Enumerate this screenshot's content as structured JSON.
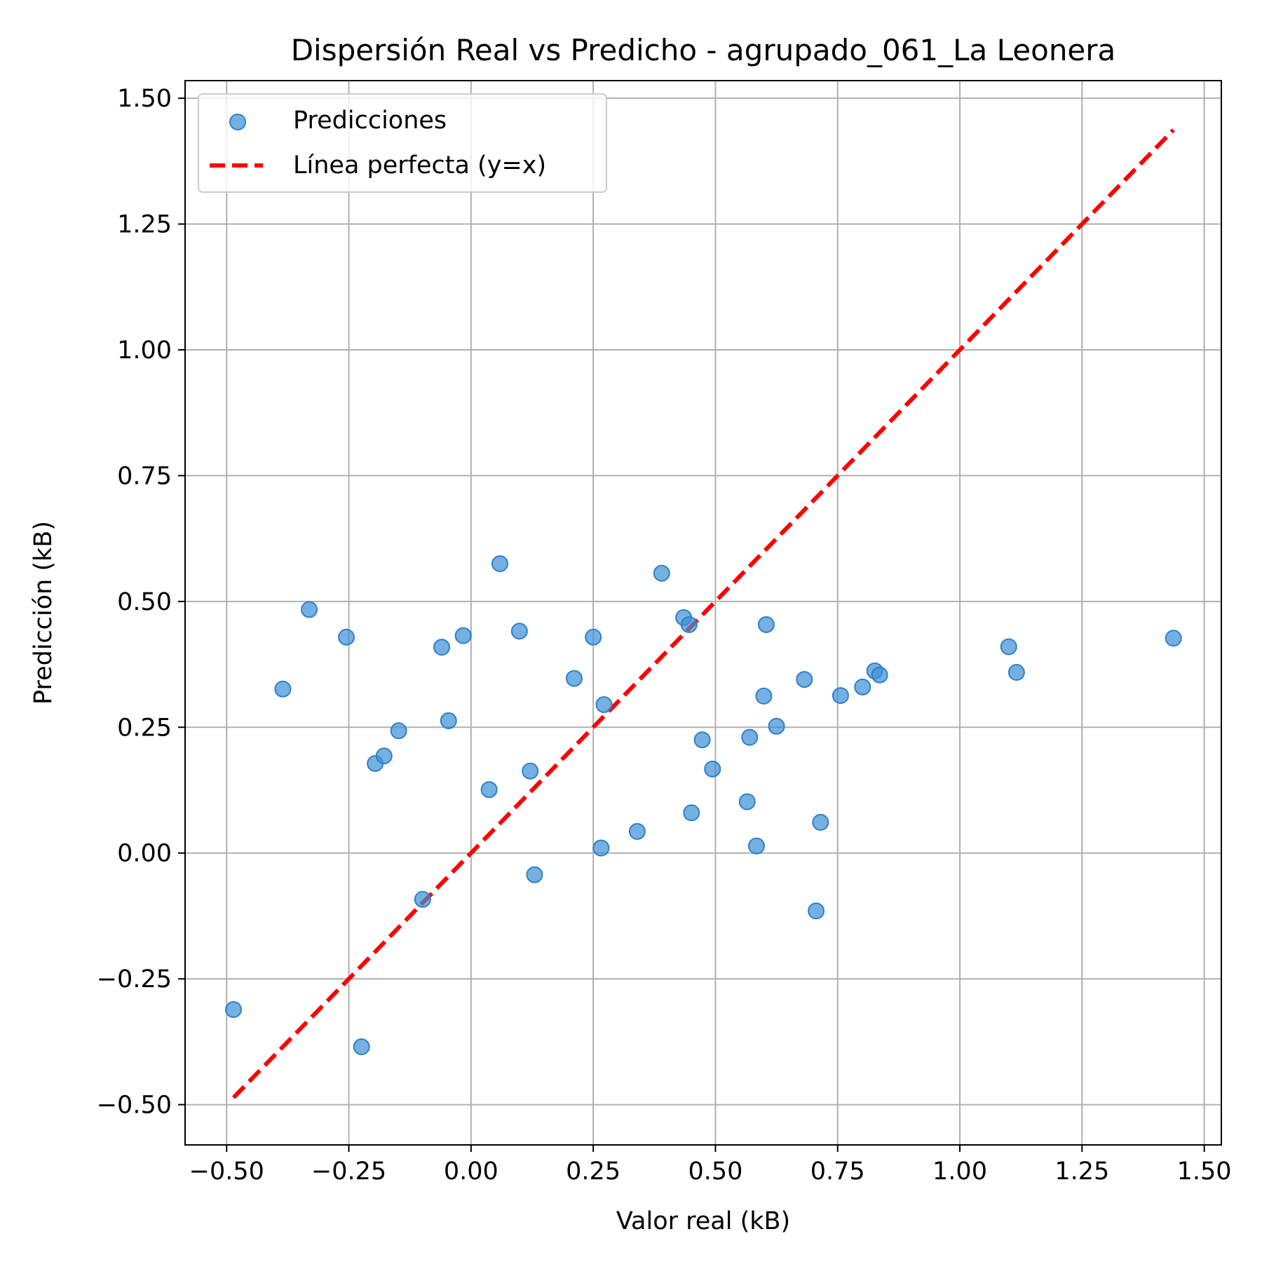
{
  "chart_data": {
    "type": "scatter",
    "title": "Dispersión Real vs Predicho - agrupado_061_La Leonera",
    "xlabel": "Valor real (kB)",
    "ylabel": "Predicción (kB)",
    "xlim": [
      -0.585,
      1.535
    ],
    "ylim": [
      -0.58,
      1.535
    ],
    "xticks": [
      -0.5,
      -0.25,
      0.0,
      0.25,
      0.5,
      0.75,
      1.0,
      1.25,
      1.5
    ],
    "yticks": [
      -0.5,
      -0.25,
      0.0,
      0.25,
      0.5,
      0.75,
      1.0,
      1.25,
      1.5
    ],
    "xtick_labels": [
      "−0.50",
      "−0.25",
      "0.00",
      "0.25",
      "0.50",
      "0.75",
      "1.00",
      "1.25",
      "1.50"
    ],
    "ytick_labels": [
      "−0.50",
      "−0.25",
      "0.00",
      "0.25",
      "0.50",
      "0.75",
      "1.00",
      "1.25",
      "1.50"
    ],
    "grid": true,
    "legend_position": "top-left",
    "series": [
      {
        "name": "Predicciones",
        "kind": "scatter",
        "color": "#3a8fd6",
        "points": [
          [
            -0.486,
            -0.311
          ],
          [
            -0.385,
            0.326
          ],
          [
            -0.331,
            0.484
          ],
          [
            -0.255,
            0.429
          ],
          [
            -0.224,
            -0.385
          ],
          [
            -0.196,
            0.178
          ],
          [
            -0.178,
            0.193
          ],
          [
            -0.148,
            0.243
          ],
          [
            -0.099,
            -0.092
          ],
          [
            -0.06,
            0.409
          ],
          [
            -0.046,
            0.263
          ],
          [
            -0.016,
            0.432
          ],
          [
            0.037,
            0.126
          ],
          [
            0.059,
            0.575
          ],
          [
            0.099,
            0.441
          ],
          [
            0.121,
            0.163
          ],
          [
            0.13,
            -0.043
          ],
          [
            0.211,
            0.347
          ],
          [
            0.25,
            0.429
          ],
          [
            0.266,
            0.01
          ],
          [
            0.272,
            0.295
          ],
          [
            0.34,
            0.043
          ],
          [
            0.39,
            0.556
          ],
          [
            0.435,
            0.468
          ],
          [
            0.446,
            0.454
          ],
          [
            0.451,
            0.08
          ],
          [
            0.473,
            0.225
          ],
          [
            0.494,
            0.167
          ],
          [
            0.565,
            0.102
          ],
          [
            0.57,
            0.23
          ],
          [
            0.584,
            0.014
          ],
          [
            0.599,
            0.312
          ],
          [
            0.604,
            0.454
          ],
          [
            0.625,
            0.252
          ],
          [
            0.682,
            0.345
          ],
          [
            0.706,
            -0.115
          ],
          [
            0.715,
            0.061
          ],
          [
            0.756,
            0.313
          ],
          [
            0.801,
            0.33
          ],
          [
            0.826,
            0.362
          ],
          [
            0.836,
            0.354
          ],
          [
            1.1,
            0.41
          ],
          [
            1.116,
            0.359
          ],
          [
            1.437,
            0.427
          ]
        ]
      },
      {
        "name": "Línea perfecta (y=x)",
        "kind": "line",
        "dash": "dashed",
        "color": "#ff0000",
        "points": [
          [
            -0.486,
            -0.486
          ],
          [
            1.437,
            1.437
          ]
        ]
      }
    ]
  }
}
